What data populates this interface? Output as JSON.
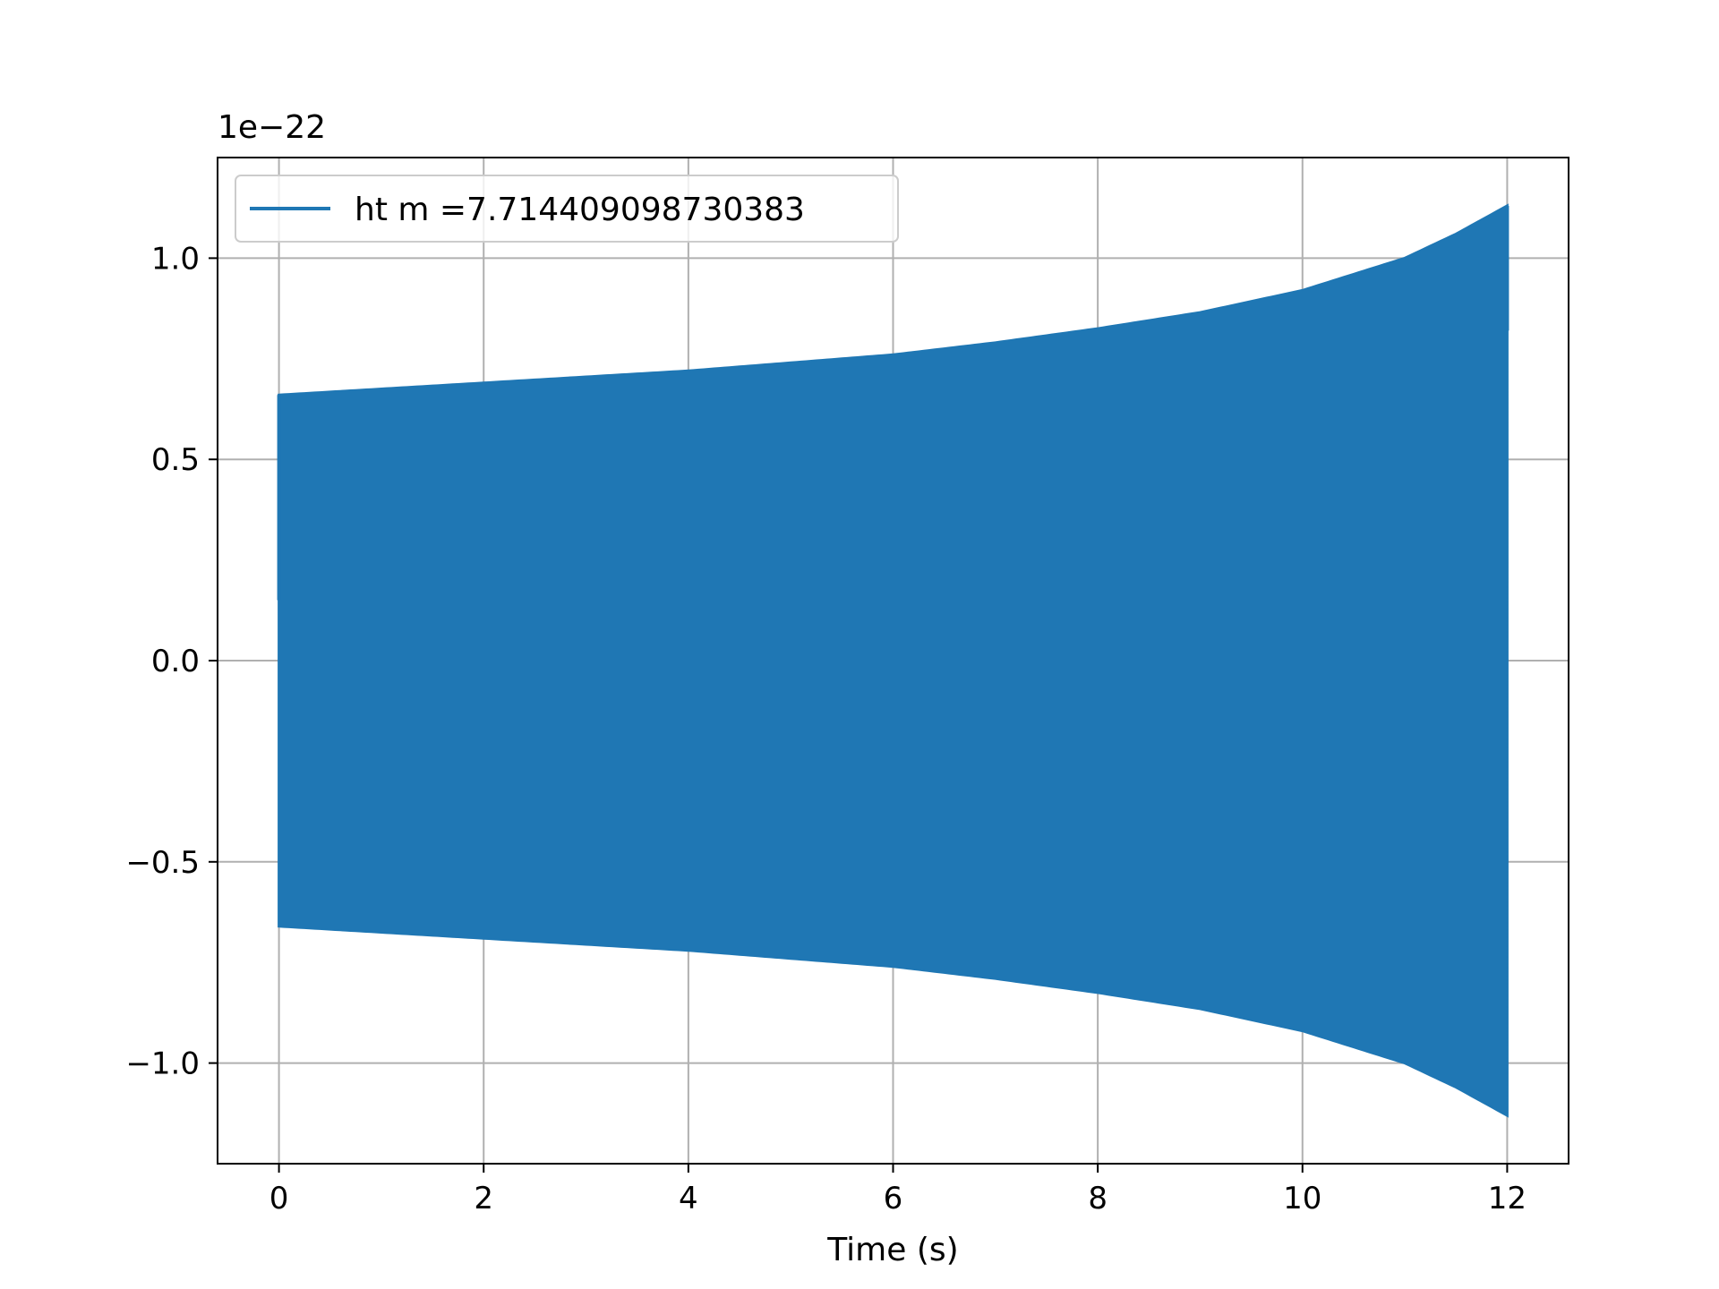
{
  "chart_data": {
    "type": "line",
    "title": "",
    "xlabel": "Time (s)",
    "ylabel": "",
    "y_offset_label": "1e−22",
    "xlim": [
      -0.6,
      12.6
    ],
    "ylim": [
      -1.25,
      1.25
    ],
    "x_ticks": [
      0,
      2,
      4,
      6,
      8,
      10,
      12
    ],
    "x_tick_labels": [
      "0",
      "2",
      "4",
      "6",
      "8",
      "10",
      "12"
    ],
    "y_ticks": [
      -1.0,
      -0.5,
      0.0,
      0.5,
      1.0
    ],
    "y_tick_labels": [
      "−1.0",
      "−0.5",
      "0.0",
      "0.5",
      "1.0"
    ],
    "grid": true,
    "legend_position": "upper-left",
    "series": [
      {
        "name": "ht m =7.714409098730383",
        "color": "#1f77b4",
        "start_value": 0.15,
        "end_value": 0.82,
        "envelope": {
          "t": [
            0,
            1,
            2,
            3,
            4,
            5,
            6,
            7,
            8,
            9,
            10,
            11,
            11.5,
            12
          ],
          "amplitude": [
            0.66,
            0.675,
            0.69,
            0.705,
            0.72,
            0.74,
            0.76,
            0.79,
            0.825,
            0.865,
            0.92,
            1.0,
            1.06,
            1.13
          ]
        }
      }
    ]
  }
}
